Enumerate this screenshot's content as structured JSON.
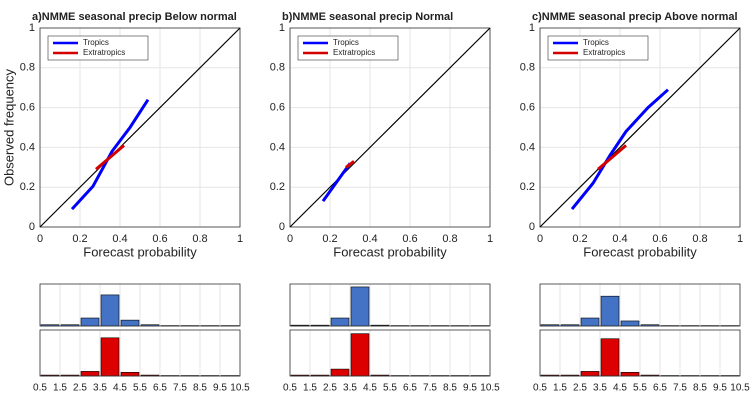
{
  "chart_data": [
    {
      "type": "line",
      "title": "a)NMME seasonal precip Below normal",
      "xlabel": "Forecast probability",
      "ylabel": "Observed frequency",
      "xlim": [
        0,
        1
      ],
      "ylim": [
        0,
        1
      ],
      "xticks": [
        0,
        0.2,
        0.4,
        0.6,
        0.8,
        1
      ],
      "yticks": [
        0,
        0.2,
        0.4,
        0.6,
        0.8,
        1
      ],
      "grid": true,
      "legend": "upper left",
      "series": [
        {
          "name": "Tropics",
          "color": "#0000ff",
          "x": [
            0.16,
            0.265,
            0.36,
            0.45,
            0.54
          ],
          "values": [
            0.09,
            0.205,
            0.38,
            0.5,
            0.64
          ]
        },
        {
          "name": "Extratropics",
          "color": "#d40000",
          "x": [
            0.28,
            0.35,
            0.42
          ],
          "values": [
            0.29,
            0.35,
            0.41
          ]
        }
      ]
    },
    {
      "type": "line",
      "title": "b)NMME seasonal precip Normal",
      "xlabel": "Forecast probability",
      "xlim": [
        0,
        1
      ],
      "ylim": [
        0,
        1
      ],
      "xticks": [
        0,
        0.2,
        0.4,
        0.6,
        0.8,
        1
      ],
      "yticks": [
        0,
        0.2,
        0.4,
        0.6,
        0.8,
        1
      ],
      "grid": true,
      "legend": "upper left",
      "series": [
        {
          "name": "Tropics",
          "color": "#0000ff",
          "x": [
            0.165,
            0.3
          ],
          "values": [
            0.13,
            0.32
          ]
        },
        {
          "name": "Extratropics",
          "color": "#d40000",
          "x": [
            0.28,
            0.32
          ],
          "values": [
            0.3,
            0.33
          ]
        }
      ]
    },
    {
      "type": "line",
      "title": "c)NMME seasonal precip Above normal",
      "xlabel": "Forecast probability",
      "xlim": [
        0,
        1
      ],
      "ylim": [
        0,
        1
      ],
      "xticks": [
        0,
        0.2,
        0.4,
        0.6,
        0.8,
        1
      ],
      "yticks": [
        0,
        0.2,
        0.4,
        0.6,
        0.8,
        1
      ],
      "grid": true,
      "legend": "upper left",
      "series": [
        {
          "name": "Tropics",
          "color": "#0000ff",
          "x": [
            0.16,
            0.265,
            0.35,
            0.43,
            0.54,
            0.64
          ],
          "values": [
            0.09,
            0.22,
            0.36,
            0.48,
            0.6,
            0.69
          ]
        },
        {
          "name": "Extratropics",
          "color": "#d40000",
          "x": [
            0.29,
            0.36,
            0.43
          ],
          "values": [
            0.29,
            0.35,
            0.41
          ]
        }
      ]
    },
    {
      "type": "histogram",
      "bins": [
        0.5,
        1.5,
        2.5,
        3.5,
        4.5,
        5.5,
        6.5,
        7.5,
        8.5,
        9.5,
        10.5
      ],
      "ylim": [
        0,
        1
      ],
      "grid": true,
      "series": [
        {
          "color": "#4472c4",
          "values": [
            0.03,
            0.03,
            0.19,
            0.74,
            0.14,
            0.03,
            0.01,
            0.01,
            0.01,
            0.01
          ]
        },
        {
          "color": "#dd0000",
          "values": [
            0.02,
            0.02,
            0.1,
            0.83,
            0.08,
            0.02,
            0.01,
            0.01,
            0.01,
            0.01
          ]
        }
      ]
    },
    {
      "type": "histogram",
      "bins": [
        0.5,
        1.5,
        2.5,
        3.5,
        4.5,
        5.5,
        6.5,
        7.5,
        8.5,
        9.5,
        10.5
      ],
      "ylim": [
        0,
        1
      ],
      "grid": true,
      "series": [
        {
          "color": "#4472c4",
          "values": [
            0.02,
            0.02,
            0.19,
            0.93,
            0.02,
            0.01,
            0.01,
            0.01,
            0.01,
            0.01
          ]
        },
        {
          "color": "#dd0000",
          "values": [
            0.02,
            0.02,
            0.15,
            0.92,
            0.02,
            0.01,
            0.01,
            0.01,
            0.01,
            0.01
          ]
        }
      ]
    },
    {
      "type": "histogram",
      "bins": [
        0.5,
        1.5,
        2.5,
        3.5,
        4.5,
        5.5,
        6.5,
        7.5,
        8.5,
        9.5,
        10.5
      ],
      "ylim": [
        0,
        1
      ],
      "grid": true,
      "series": [
        {
          "color": "#4472c4",
          "values": [
            0.03,
            0.03,
            0.19,
            0.71,
            0.12,
            0.03,
            0.01,
            0.01,
            0.01,
            0.01
          ]
        },
        {
          "color": "#dd0000",
          "values": [
            0.02,
            0.02,
            0.1,
            0.81,
            0.08,
            0.02,
            0.01,
            0.01,
            0.01,
            0.01
          ]
        }
      ]
    }
  ]
}
